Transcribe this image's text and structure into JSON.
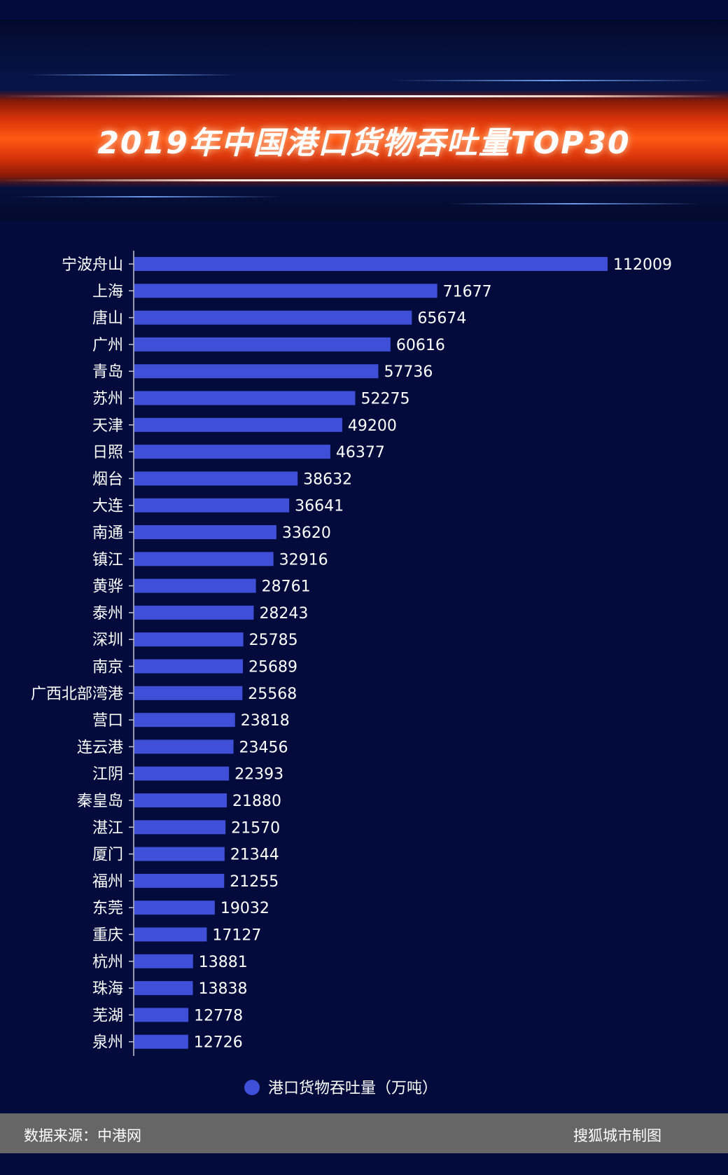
{
  "chart_data": {
    "type": "bar",
    "orientation": "horizontal",
    "title": "2019年中国港口货物吞吐量TOP30",
    "categories": [
      "宁波舟山",
      "上海",
      "唐山",
      "广州",
      "青岛",
      "苏州",
      "天津",
      "日照",
      "烟台",
      "大连",
      "南通",
      "镇江",
      "黄骅",
      "泰州",
      "深圳",
      "南京",
      "广西北部湾港",
      "营口",
      "连云港",
      "江阴",
      "秦皇岛",
      "湛江",
      "厦门",
      "福州",
      "东莞",
      "重庆",
      "杭州",
      "珠海",
      "芜湖",
      "泉州"
    ],
    "series": [
      {
        "name": "港口货物吞吐量（万吨）",
        "values": [
          112009,
          71677,
          65674,
          60616,
          57736,
          52275,
          49200,
          46377,
          38632,
          36641,
          33620,
          32916,
          28761,
          28243,
          25785,
          25689,
          25568,
          23818,
          23456,
          22393,
          21880,
          21570,
          21344,
          21255,
          19032,
          17127,
          13881,
          13838,
          12778,
          12726
        ]
      }
    ],
    "legend_position": "bottom",
    "data_labels": true,
    "grid": false,
    "colors": {
      "bar": "#3f4fd8",
      "text": "#ffffff",
      "background": "#020b3c"
    }
  },
  "footer": {
    "source": "数据来源：中港网",
    "credit": "搜狐城市制图"
  }
}
